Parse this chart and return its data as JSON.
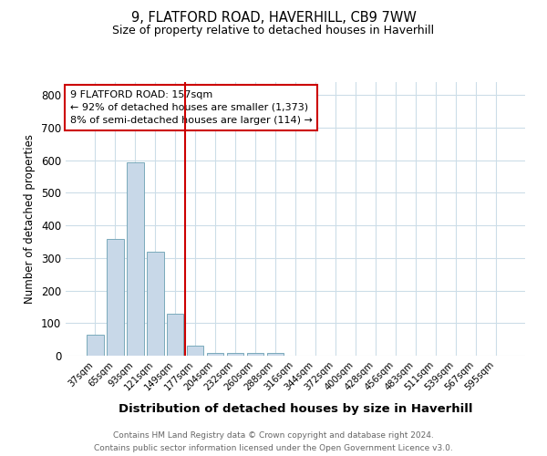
{
  "title1": "9, FLATFORD ROAD, HAVERHILL, CB9 7WW",
  "title2": "Size of property relative to detached houses in Haverhill",
  "xlabel": "Distribution of detached houses by size in Haverhill",
  "ylabel": "Number of detached properties",
  "bar_labels": [
    "37sqm",
    "65sqm",
    "93sqm",
    "121sqm",
    "149sqm",
    "177sqm",
    "204sqm",
    "232sqm",
    "260sqm",
    "288sqm",
    "316sqm",
    "344sqm",
    "372sqm",
    "400sqm",
    "428sqm",
    "456sqm",
    "483sqm",
    "511sqm",
    "539sqm",
    "567sqm",
    "595sqm"
  ],
  "bar_values": [
    65,
    358,
    595,
    320,
    130,
    30,
    8,
    8,
    8,
    8,
    0,
    0,
    0,
    0,
    0,
    0,
    0,
    0,
    0,
    0,
    0
  ],
  "bar_color": "#c8d8e8",
  "bar_edge_color": "#7aaabb",
  "vline_x": 4.5,
  "vline_color": "#cc0000",
  "annotation_line1": "9 FLATFORD ROAD: 157sqm",
  "annotation_line2": "← 92% of detached houses are smaller (1,373)",
  "annotation_line3": "8% of semi-detached houses are larger (114) →",
  "annotation_box_color": "#ffffff",
  "annotation_box_edge": "#cc0000",
  "ylim": [
    0,
    840
  ],
  "yticks": [
    0,
    100,
    200,
    300,
    400,
    500,
    600,
    700,
    800
  ],
  "footer1": "Contains HM Land Registry data © Crown copyright and database right 2024.",
  "footer2": "Contains public sector information licensed under the Open Government Licence v3.0.",
  "bg_color": "#ffffff",
  "grid_color": "#ccdde8"
}
